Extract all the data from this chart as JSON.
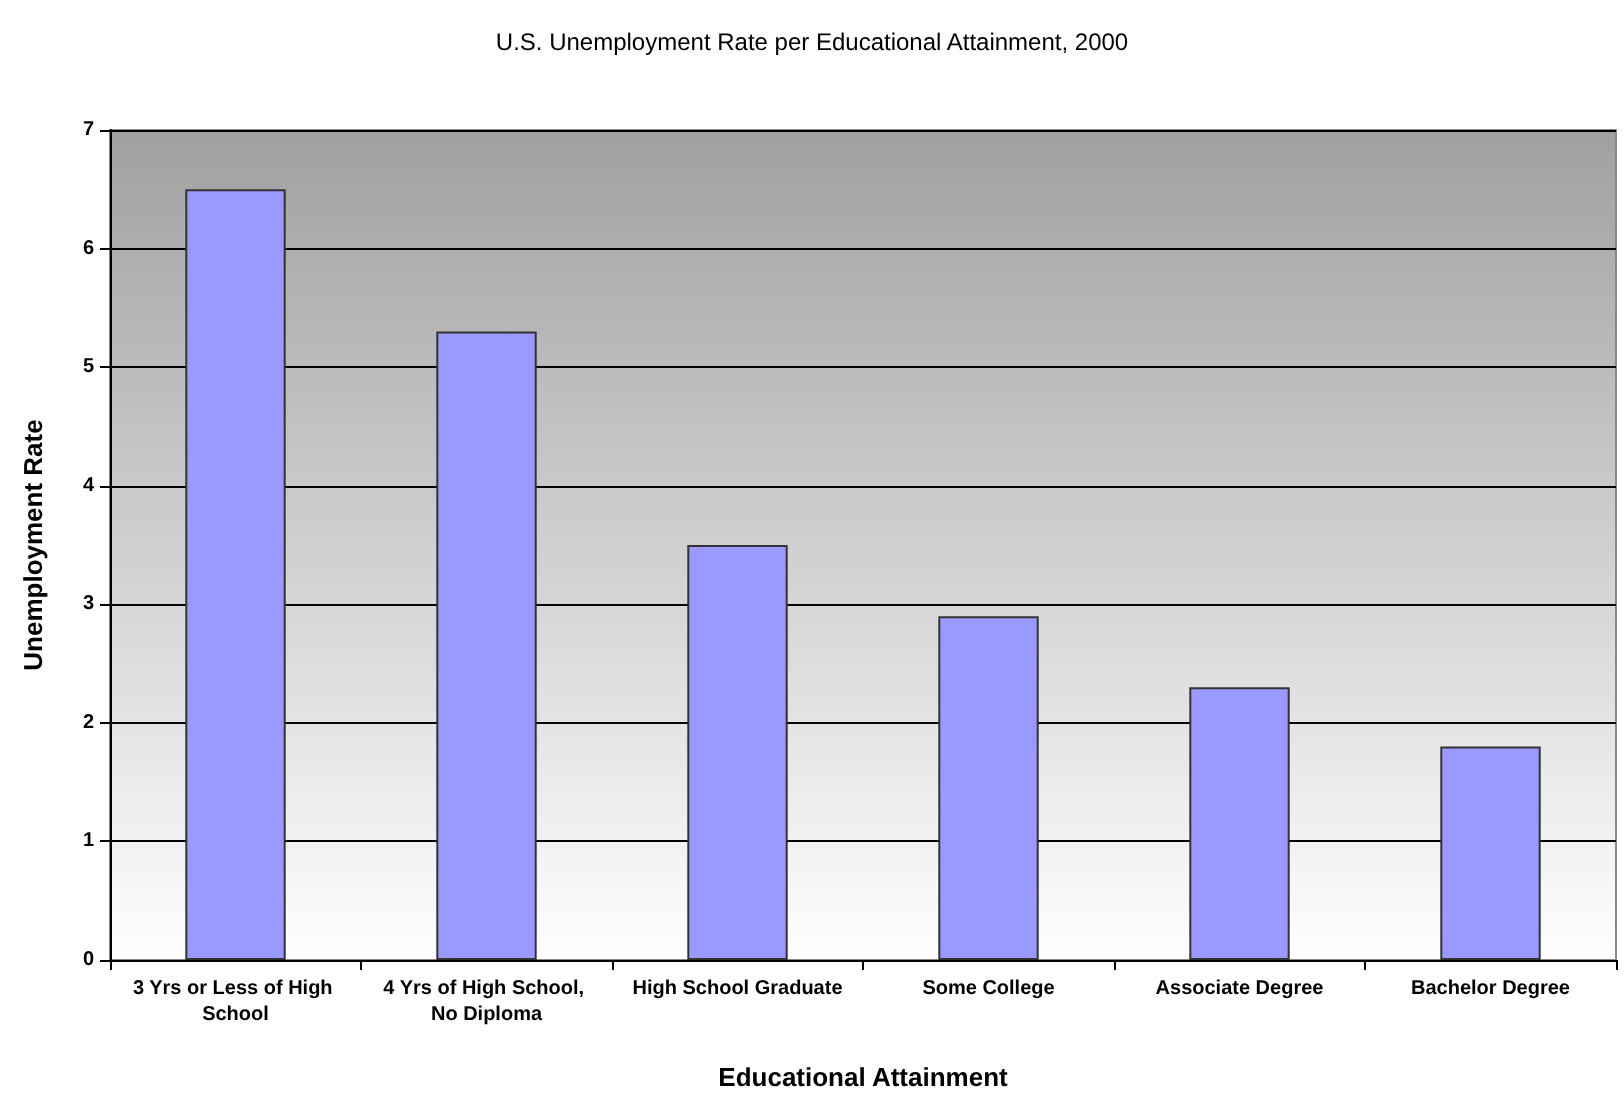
{
  "chart_data": {
    "type": "bar",
    "title": "U.S. Unemployment Rate per Educational Attainment, 2000",
    "xlabel": "Educational Attainment",
    "ylabel": "Unemployment Rate",
    "categories": [
      "3 Yrs or Less of High School",
      "4 Yrs of High School, No Diploma",
      "High School Graduate",
      "Some College",
      "Associate Degree",
      "Bachelor Degree"
    ],
    "values": [
      6.5,
      5.3,
      3.5,
      2.9,
      2.3,
      1.8
    ],
    "color": "#9999ff",
    "ylim": [
      0,
      7
    ],
    "yticks": [
      0,
      1,
      2,
      3,
      4,
      5,
      6,
      7
    ],
    "grid": "y"
  }
}
